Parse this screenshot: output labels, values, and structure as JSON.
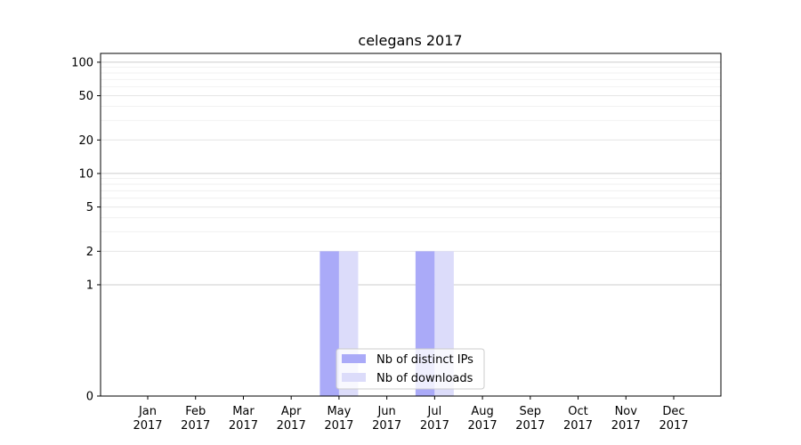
{
  "chart_data": {
    "type": "bar",
    "title": "celegans 2017",
    "xlabel": "",
    "ylabel": "",
    "y_scale": "symlog",
    "ylim": [
      0,
      120
    ],
    "y_ticks": [
      0,
      1,
      2,
      5,
      10,
      20,
      50,
      100
    ],
    "y_tick_labels": [
      "0",
      "1",
      "2",
      "5",
      "10",
      "20",
      "50",
      "100"
    ],
    "categories": [
      [
        "Jan",
        "2017"
      ],
      [
        "Feb",
        "2017"
      ],
      [
        "Mar",
        "2017"
      ],
      [
        "Apr",
        "2017"
      ],
      [
        "May",
        "2017"
      ],
      [
        "Jun",
        "2017"
      ],
      [
        "Jul",
        "2017"
      ],
      [
        "Aug",
        "2017"
      ],
      [
        "Sep",
        "2017"
      ],
      [
        "Oct",
        "2017"
      ],
      [
        "Nov",
        "2017"
      ],
      [
        "Dec",
        "2017"
      ]
    ],
    "series": [
      {
        "name": "Nb of distinct IPs",
        "color": "#aaaaf8",
        "values": [
          0,
          0,
          0,
          0,
          2,
          0,
          2,
          0,
          0,
          0,
          0,
          0
        ]
      },
      {
        "name": "Nb of downloads",
        "color": "#dcdcfa",
        "values": [
          0,
          0,
          0,
          0,
          2,
          0,
          2,
          0,
          0,
          0,
          0,
          0
        ]
      }
    ],
    "grid": true,
    "legend_position": "bottom-center"
  }
}
